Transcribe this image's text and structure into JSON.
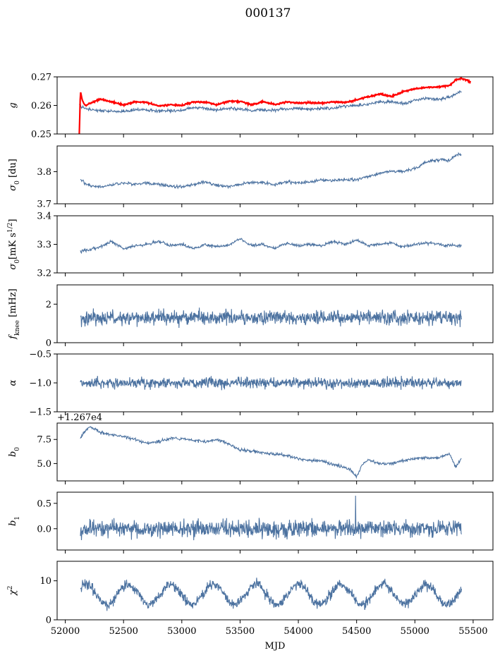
{
  "figure_title": "000137",
  "colors": {
    "series": "#4c72a0",
    "highlight": "#ff0000",
    "axes": "#000000"
  },
  "chart_data": [
    {
      "type": "line",
      "ylabel": "g",
      "ylim": [
        0.25,
        0.27
      ],
      "yticks": [
        0.25,
        0.26,
        0.27
      ],
      "ytick_labels": [
        "0.25",
        "0.26",
        "0.27"
      ],
      "series": [
        {
          "key": "fit",
          "color": "#4c72a0",
          "x": [
            52120,
            52140,
            52160,
            52180,
            52200,
            52300,
            52400,
            52500,
            52600,
            52700,
            52800,
            52900,
            53000,
            53100,
            53200,
            53300,
            53400,
            53500,
            53600,
            53700,
            53800,
            53900,
            54000,
            54100,
            54200,
            54300,
            54400,
            54500,
            54600,
            54700,
            54800,
            54900,
            55000,
            55100,
            55200,
            55300,
            55400
          ],
          "y": [
            0.2605,
            0.2593,
            0.2592,
            0.2588,
            0.2585,
            0.2582,
            0.258,
            0.2578,
            0.2586,
            0.2584,
            0.258,
            0.2582,
            0.2583,
            0.2592,
            0.2589,
            0.2584,
            0.259,
            0.2588,
            0.2583,
            0.2584,
            0.2583,
            0.2588,
            0.2589,
            0.2586,
            0.2589,
            0.2591,
            0.2598,
            0.26,
            0.2605,
            0.2612,
            0.2613,
            0.2605,
            0.2618,
            0.2625,
            0.2621,
            0.263,
            0.265
          ]
        },
        {
          "key": "raw",
          "color": "#ff0000",
          "x": [
            52120,
            52130,
            52140,
            52150,
            52160,
            52180,
            52200,
            52300,
            52400,
            52500,
            52600,
            52700,
            52800,
            52900,
            53000,
            53100,
            53200,
            53300,
            53400,
            53500,
            53600,
            53700,
            53800,
            53900,
            54000,
            54100,
            54200,
            54300,
            54400,
            54500,
            54600,
            54700,
            54800,
            54900,
            55000,
            55100,
            55200,
            55300,
            55350,
            55400,
            55450,
            55480
          ],
          "y": [
            0.25,
            0.265,
            0.263,
            0.2615,
            0.2605,
            0.26,
            0.2605,
            0.2622,
            0.2612,
            0.2602,
            0.2613,
            0.261,
            0.2598,
            0.2603,
            0.26,
            0.2612,
            0.2612,
            0.2602,
            0.2614,
            0.2614,
            0.2602,
            0.2614,
            0.2603,
            0.2612,
            0.2608,
            0.261,
            0.2608,
            0.2613,
            0.261,
            0.262,
            0.263,
            0.264,
            0.2632,
            0.2648,
            0.2658,
            0.2663,
            0.2665,
            0.267,
            0.269,
            0.2695,
            0.2688,
            0.268
          ]
        }
      ]
    },
    {
      "type": "line",
      "ylabel": "σ0 [du]",
      "ylim": [
        3.7,
        3.88
      ],
      "yticks": [
        3.7,
        3.8
      ],
      "ytick_labels": [
        "3.7",
        "3.8"
      ],
      "series": [
        {
          "key": "main",
          "color": "#4c72a0",
          "x": [
            52130,
            52200,
            52300,
            52400,
            52500,
            52600,
            52700,
            52800,
            52900,
            53000,
            53100,
            53200,
            53300,
            53400,
            53500,
            53600,
            53700,
            53800,
            53900,
            54000,
            54100,
            54200,
            54300,
            54400,
            54500,
            54600,
            54700,
            54800,
            54900,
            55000,
            55100,
            55200,
            55300,
            55350,
            55400
          ],
          "y": [
            3.775,
            3.758,
            3.752,
            3.76,
            3.765,
            3.76,
            3.765,
            3.76,
            3.755,
            3.752,
            3.76,
            3.768,
            3.758,
            3.755,
            3.76,
            3.768,
            3.765,
            3.76,
            3.768,
            3.765,
            3.768,
            3.775,
            3.772,
            3.775,
            3.775,
            3.785,
            3.795,
            3.802,
            3.8,
            3.81,
            3.83,
            3.838,
            3.835,
            3.852,
            3.855
          ]
        }
      ]
    },
    {
      "type": "line",
      "ylabel": "σ0[mK s^1/2]",
      "ylim": [
        3.2,
        3.4
      ],
      "yticks": [
        3.2,
        3.3,
        3.4
      ],
      "ytick_labels": [
        "3.2",
        "3.3",
        "3.4"
      ],
      "series": [
        {
          "key": "main",
          "color": "#4c72a0",
          "x": [
            52130,
            52200,
            52300,
            52400,
            52500,
            52600,
            52700,
            52800,
            52900,
            53000,
            53100,
            53200,
            53300,
            53400,
            53500,
            53600,
            53700,
            53800,
            53900,
            54000,
            54100,
            54200,
            54300,
            54400,
            54500,
            54600,
            54700,
            54800,
            54900,
            55000,
            55100,
            55200,
            55300,
            55400
          ],
          "y": [
            3.275,
            3.282,
            3.29,
            3.31,
            3.285,
            3.295,
            3.3,
            3.31,
            3.295,
            3.3,
            3.285,
            3.3,
            3.29,
            3.295,
            3.32,
            3.295,
            3.3,
            3.285,
            3.305,
            3.295,
            3.3,
            3.295,
            3.31,
            3.3,
            3.315,
            3.295,
            3.3,
            3.305,
            3.29,
            3.3,
            3.305,
            3.3,
            3.295,
            3.295
          ]
        }
      ]
    },
    {
      "type": "line",
      "ylabel": "f_knee [mHz]",
      "ylim": [
        0,
        3.0
      ],
      "yticks": [
        0,
        2
      ],
      "ytick_labels": [
        "0",
        "2"
      ],
      "series": [
        {
          "key": "main",
          "color": "#4c72a0",
          "x_start": 52130,
          "x_end": 55400,
          "mean": 1.3,
          "noise": 0.25
        }
      ]
    },
    {
      "type": "line",
      "ylabel": "α",
      "ylim": [
        -1.5,
        -0.5
      ],
      "yticks": [
        -1.5,
        -1.0,
        -0.5
      ],
      "ytick_labels": [
        "−1.5",
        "−1.0",
        "−0.5"
      ],
      "series": [
        {
          "key": "main",
          "color": "#4c72a0",
          "x_start": 52130,
          "x_end": 55400,
          "mean": -1.0,
          "noise": 0.06
        }
      ]
    },
    {
      "type": "line",
      "ylabel": "b0",
      "offset_text": "+1.267e4",
      "ylim": [
        3.2,
        9.2
      ],
      "yticks": [
        5.0,
        7.5
      ],
      "ytick_labels": [
        "5.0",
        "7.5"
      ],
      "series": [
        {
          "key": "main",
          "color": "#4c72a0",
          "x": [
            52130,
            52200,
            52250,
            52300,
            52400,
            52500,
            52600,
            52700,
            52800,
            52900,
            53000,
            53100,
            53200,
            53300,
            53400,
            53500,
            53600,
            53700,
            53800,
            53900,
            54000,
            54100,
            54200,
            54300,
            54400,
            54450,
            54500,
            54550,
            54600,
            54700,
            54800,
            54900,
            55000,
            55100,
            55200,
            55300,
            55350,
            55400
          ],
          "y": [
            7.7,
            8.8,
            8.6,
            8.2,
            8.0,
            7.8,
            7.5,
            7.1,
            7.3,
            7.6,
            7.6,
            7.4,
            7.3,
            7.5,
            7.1,
            6.4,
            6.3,
            6.1,
            6.0,
            5.8,
            5.5,
            5.3,
            5.3,
            4.9,
            4.6,
            4.3,
            3.6,
            4.9,
            5.4,
            5.0,
            5.0,
            5.3,
            5.5,
            5.6,
            5.6,
            6.0,
            4.6,
            5.6
          ]
        }
      ]
    },
    {
      "type": "line",
      "ylabel": "b1",
      "ylim": [
        -0.42,
        0.72
      ],
      "yticks": [
        0.0,
        0.5
      ],
      "ytick_labels": [
        "0.0",
        "0.5"
      ],
      "series": [
        {
          "key": "main",
          "color": "#4c72a0",
          "x_start": 52130,
          "x_end": 55400,
          "mean": 0.0,
          "noise": 0.11,
          "spike_x": 54490,
          "spike_y": 0.65
        }
      ]
    },
    {
      "type": "line",
      "ylabel": "χ2",
      "xlabel": "MJD",
      "ylim": [
        0,
        15
      ],
      "yticks": [
        0,
        10
      ],
      "ytick_labels": [
        "0",
        "10"
      ],
      "xticks": [
        52000,
        52500,
        53000,
        53500,
        54000,
        54500,
        55000,
        55500
      ],
      "xtick_labels": [
        "52000",
        "52500",
        "53000",
        "53500",
        "54000",
        "54500",
        "55000",
        "55500"
      ],
      "xlim": [
        51930,
        55670
      ],
      "series": [
        {
          "key": "main",
          "color": "#4c72a0",
          "x_start": 52130,
          "x_end": 55400,
          "mean": 6.5,
          "amplitude": 2.5,
          "period": 365,
          "noise": 0.9
        }
      ]
    }
  ]
}
